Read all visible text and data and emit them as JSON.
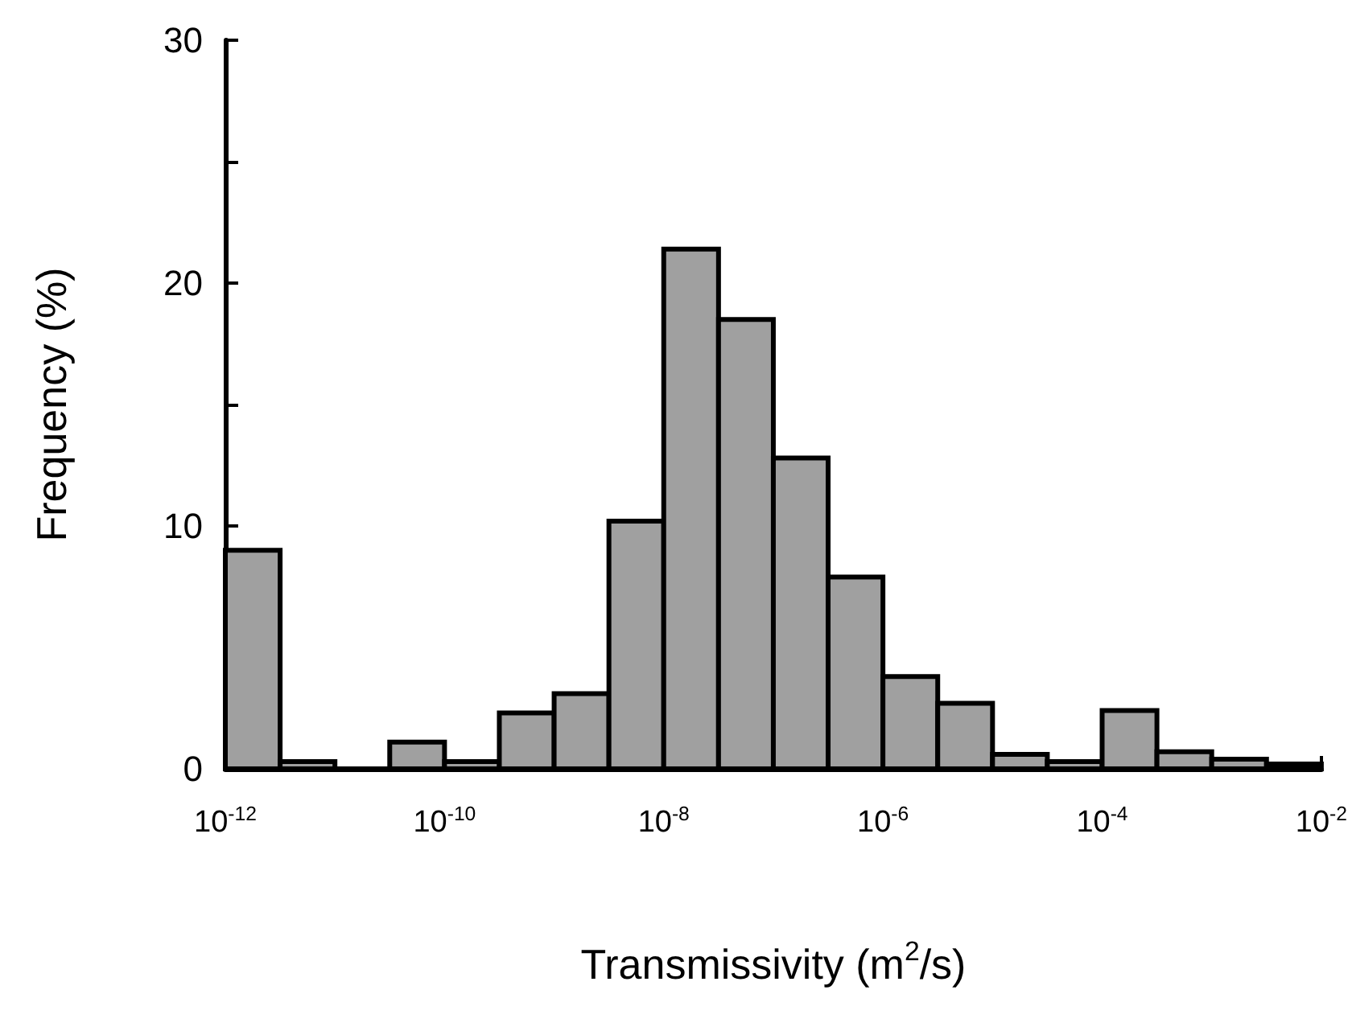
{
  "chart_data": {
    "type": "histogram",
    "xlabel": "Transmissivity (m$^{2}$/s)",
    "ylabel": "Frequency (%)",
    "log": "x",
    "bins": [
      1e-12,
      3.162e-12,
      1e-11,
      3.162e-11,
      1e-10,
      3.162e-10,
      1e-09,
      3.162e-09,
      1e-08,
      3.162e-08,
      1e-07,
      3.162e-07,
      1e-06,
      3.162e-06,
      1e-05,
      3.162e-05,
      0.0001,
      0.0003162,
      0.001,
      0.003162,
      0.01
    ],
    "values": [
      9.0,
      0.3,
      0,
      1.1,
      0.3,
      2.3,
      3.1,
      10.2,
      21.4,
      18.5,
      12.8,
      7.9,
      3.8,
      2.7,
      0.6,
      0.3,
      2.4,
      0.7,
      0.4,
      0.2
    ],
    "color": "#a0a0a0",
    "xlim": [
      1e-12,
      0.01
    ],
    "xticks": [
      {
        "value": 1e-12,
        "label": "10$^{-12}$"
      },
      {
        "value": 1e-10,
        "label": "10$^{-10}$"
      },
      {
        "value": 1e-08,
        "label": "10$^{-8}$"
      },
      {
        "value": 1e-06,
        "label": "10$^{-6}$"
      },
      {
        "value": 0.0001,
        "label": "10$^{-4}$"
      },
      {
        "value": 0.01,
        "label": "10$^{-2}$"
      }
    ],
    "ylim": [
      0,
      30
    ],
    "yticks": [
      0,
      {
        "value": 5,
        "label": null
      },
      10,
      {
        "value": 15,
        "label": null
      },
      20,
      {
        "value": 25,
        "label": null
      },
      30
    ],
    "grid": false,
    "legend": false
  }
}
